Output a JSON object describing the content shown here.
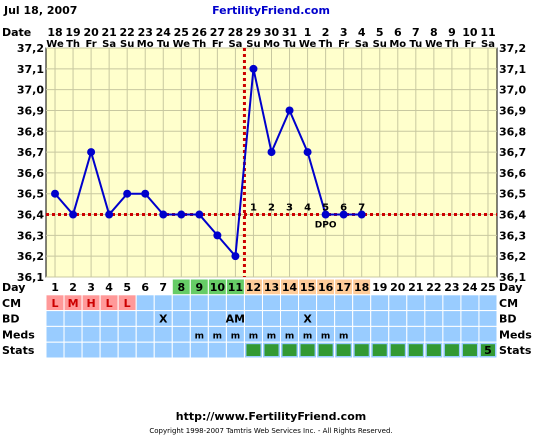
{
  "header": {
    "date": "Jul 18, 2007",
    "site": "FertilityFriend.com"
  },
  "footer": {
    "url": "http://www.FertilityFriend.com",
    "copyright": "Copyright 1998-2007 Tamtris Web Services Inc. - All Rights Reserved."
  },
  "colors": {
    "plot_bg": "#ffffcc",
    "grid": "#c8c8a0",
    "line": "#0000cc",
    "marker": "#0000cc",
    "coverline": "#cc0000",
    "ovulation_line": "#cc0000",
    "row_blue": "#99ccff",
    "cell_green": "#66cc66",
    "cell_orange": "#ffcc99",
    "cell_red": "#ff9999",
    "stat_green": "#339933",
    "header_blue": "#0000cc"
  },
  "rows": {
    "date_label": "Date",
    "day_label": "Day",
    "cm_label": "CM",
    "bd_label": "BD",
    "meds_label": "Meds",
    "stats_label": "Stats"
  },
  "chart_data": {
    "type": "line",
    "ylim": [
      36.1,
      37.2
    ],
    "yticks": [
      "37,2",
      "37,1",
      "37,0",
      "36,9",
      "36,8",
      "36,7",
      "36,6",
      "36,5",
      "36,4",
      "36,3",
      "36,2",
      "36,1"
    ],
    "dates": [
      "18",
      "19",
      "20",
      "21",
      "22",
      "23",
      "24",
      "25",
      "26",
      "27",
      "28",
      "29",
      "30",
      "31",
      "1",
      "2",
      "3",
      "4",
      "5",
      "6",
      "7",
      "8",
      "9",
      "10",
      "11"
    ],
    "weekdays": [
      "We",
      "Th",
      "Fr",
      "Sa",
      "Su",
      "Mo",
      "Tu",
      "We",
      "Th",
      "Fr",
      "Sa",
      "Su",
      "Mo",
      "Tu",
      "We",
      "Th",
      "Fr",
      "Sa",
      "Su",
      "Mo",
      "Tu",
      "We",
      "Th",
      "Fr",
      "Sa"
    ],
    "days": [
      "1",
      "2",
      "3",
      "4",
      "5",
      "6",
      "7",
      "8",
      "9",
      "10",
      "11",
      "12",
      "13",
      "14",
      "15",
      "16",
      "17",
      "18",
      "19",
      "20",
      "21",
      "22",
      "23",
      "24",
      "25"
    ],
    "temps": [
      36.5,
      36.4,
      36.7,
      36.4,
      36.5,
      36.5,
      36.4,
      36.4,
      36.4,
      36.3,
      36.2,
      37.1,
      36.7,
      36.9,
      36.7,
      36.4,
      36.4,
      36.4,
      null,
      null,
      null,
      null,
      null,
      null,
      null
    ],
    "coverline": 36.4,
    "ovulation_day_index": 10,
    "dpo_labels": [
      "1",
      "2",
      "3",
      "4",
      "5",
      "6",
      "7"
    ],
    "dpo_start_index": 11,
    "dpo_text": "DPO",
    "day_cell_colors": [
      "w",
      "w",
      "w",
      "w",
      "w",
      "w",
      "w",
      "g",
      "g",
      "g",
      "g",
      "o",
      "o",
      "o",
      "o",
      "o",
      "o",
      "o",
      "w",
      "w",
      "w",
      "w",
      "w",
      "w",
      "w"
    ],
    "cm": [
      "L",
      "M",
      "H",
      "L",
      "L",
      "",
      "",
      "",
      "",
      "",
      "",
      "",
      "",
      "",
      "",
      "",
      "",
      "",
      "",
      "",
      "",
      "",
      "",
      "",
      ""
    ],
    "bd": [
      "",
      "",
      "",
      "",
      "",
      "",
      "X",
      "",
      "",
      "",
      "AM",
      "",
      "",
      "",
      "X",
      "",
      "",
      "",
      "",
      "",
      "",
      "",
      "",
      "",
      ""
    ],
    "meds": [
      "",
      "",
      "",
      "",
      "",
      "",
      "",
      "",
      "m",
      "m",
      "m",
      "m",
      "m",
      "m",
      "m",
      "m",
      "m",
      "",
      "",
      "",
      "",
      "",
      "",
      "",
      ""
    ],
    "stats": [
      "",
      "",
      "",
      "",
      "",
      "",
      "",
      "",
      "",
      "",
      "",
      "s",
      "s",
      "s",
      "s",
      "s",
      "s",
      "s",
      "s",
      "s",
      "s",
      "s",
      "s",
      "s",
      "5"
    ]
  }
}
